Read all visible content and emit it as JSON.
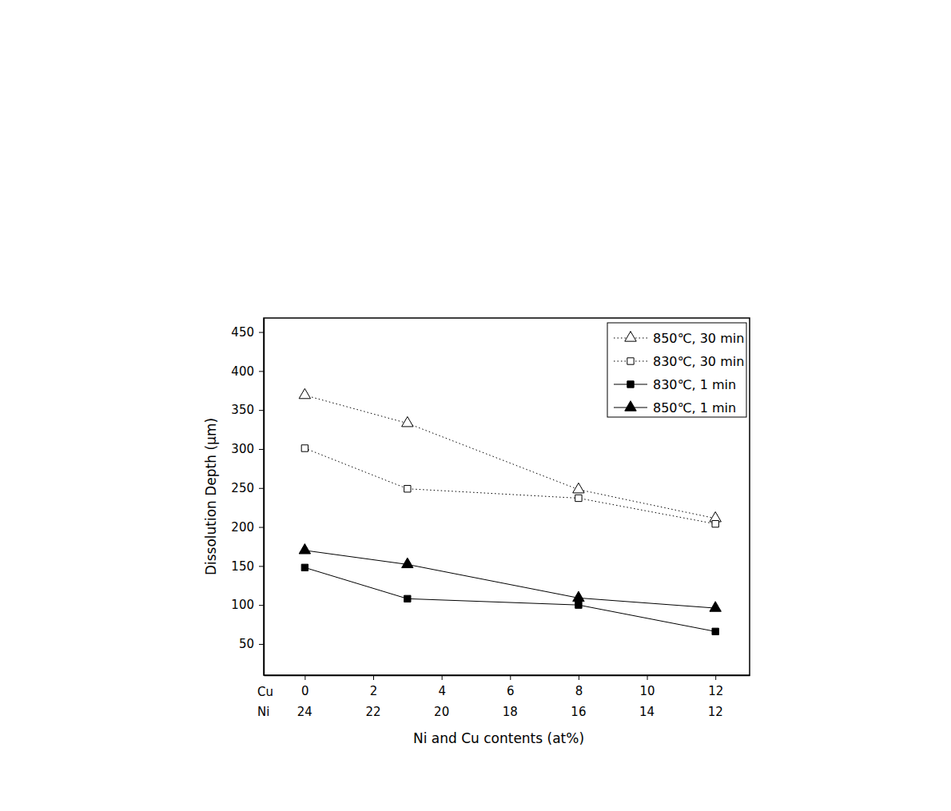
{
  "chart_data": {
    "type": "line",
    "x_label": "Ni and Cu contents (at%)",
    "y_label": "Dissolution Depth (μm)",
    "x": [
      0,
      3,
      8,
      12
    ],
    "xlim": [
      -1.2,
      13
    ],
    "xticks": [
      0,
      2,
      4,
      6,
      8,
      10,
      12
    ],
    "xtick_row_names": [
      "Cu",
      "Ni"
    ],
    "xticks_ni": [
      24,
      22,
      20,
      18,
      16,
      14,
      12
    ],
    "ylim": [
      10,
      468
    ],
    "yticks": [
      50,
      100,
      150,
      200,
      250,
      300,
      350,
      400,
      450
    ],
    "grid": false,
    "legend": "top-right",
    "series": [
      {
        "name": "850℃, 30 min",
        "color": "#000000",
        "marker": "triangle-open",
        "line_style": "dotted",
        "values": [
          369,
          333,
          248,
          211
        ]
      },
      {
        "name": "830℃, 30 min",
        "color": "#000000",
        "marker": "square-open",
        "line_style": "dotted",
        "values": [
          301,
          249,
          237,
          204
        ]
      },
      {
        "name": "830℃, 1 min",
        "color": "#000000",
        "marker": "square",
        "line_style": "solid",
        "values": [
          148,
          108,
          100,
          66
        ]
      },
      {
        "name": "850℃, 1 min",
        "color": "#000000",
        "marker": "triangle",
        "line_style": "solid",
        "values": [
          170,
          152,
          109,
          96
        ]
      }
    ]
  }
}
